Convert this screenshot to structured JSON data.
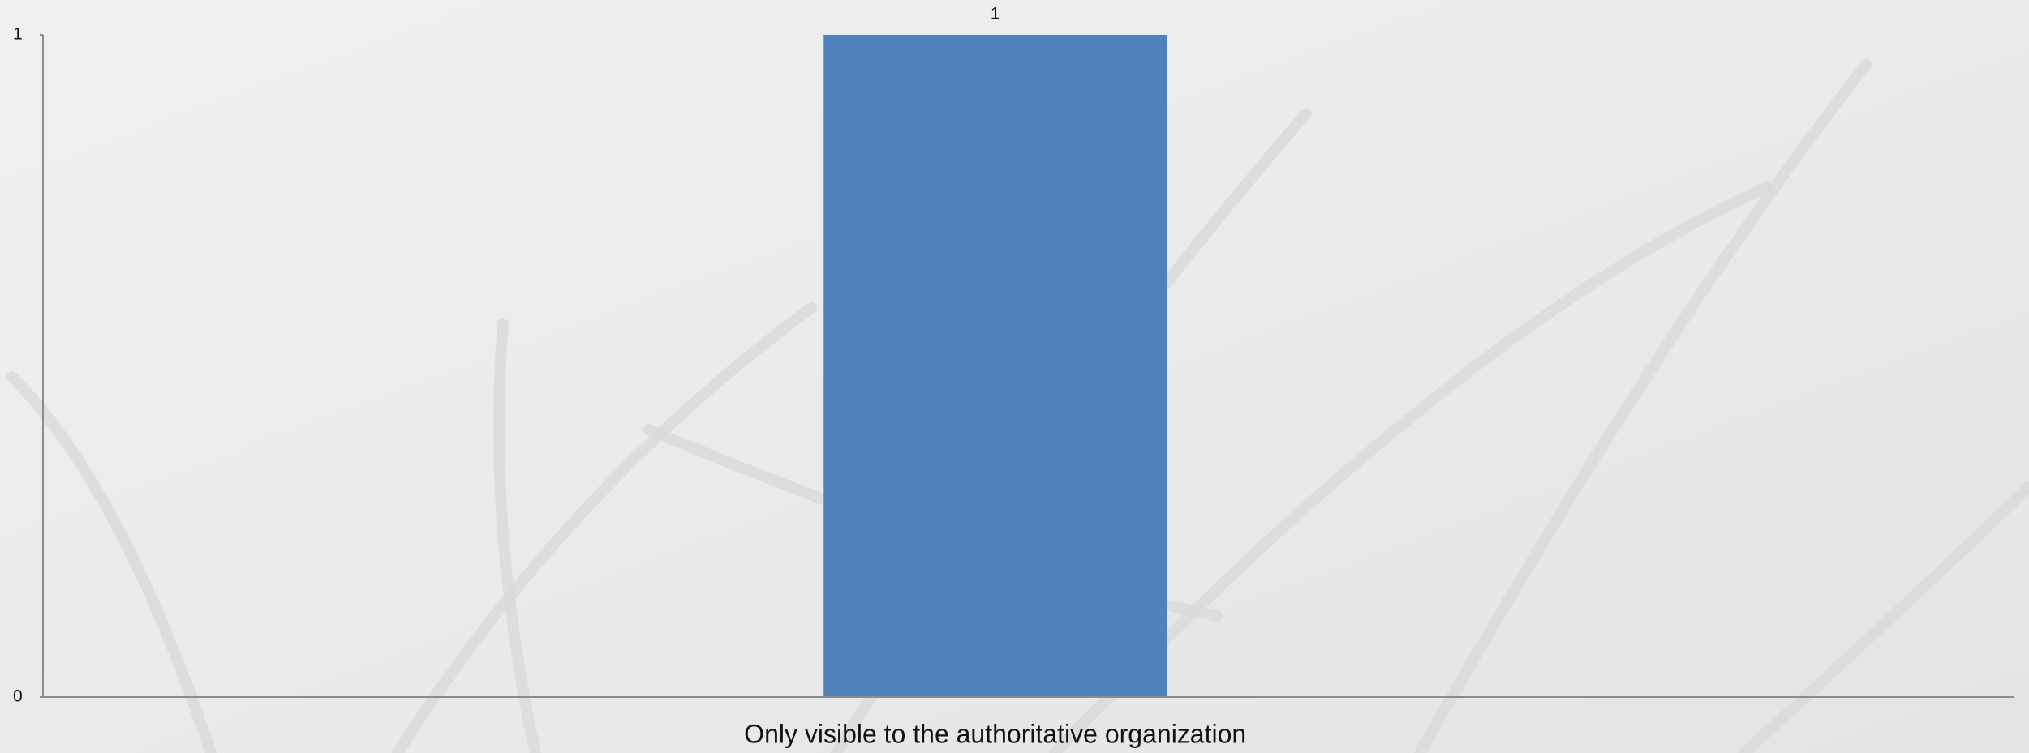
{
  "chart_data": {
    "type": "bar",
    "categories": [
      "Only visible to the authoritative organization"
    ],
    "values": [
      1
    ],
    "color": "#4f81bd",
    "ylim": [
      0,
      1
    ],
    "yticks": [
      0,
      1
    ],
    "grid": false
  }
}
